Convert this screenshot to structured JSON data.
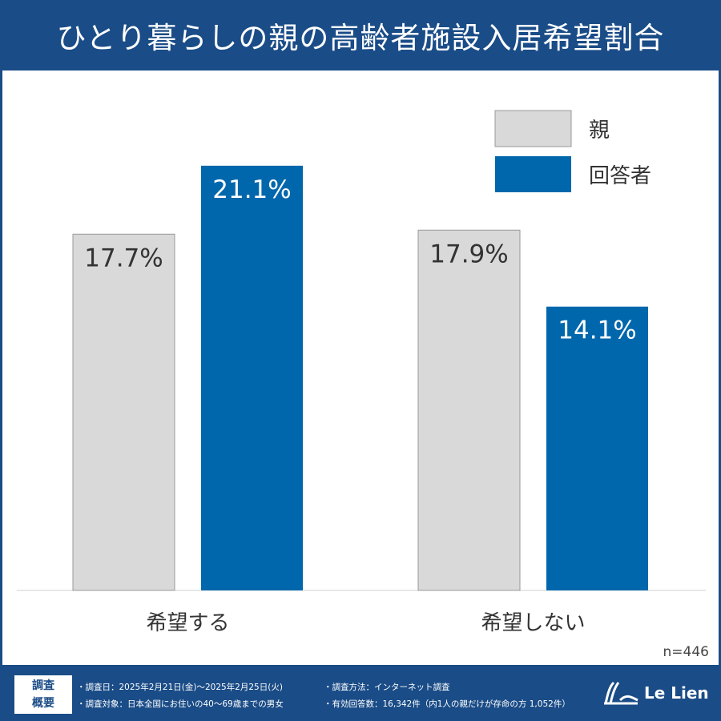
{
  "title": "ひとり暮らしの親の高齢者施設入居希望割合",
  "colors": {
    "header": "#1a4c87",
    "parent": "#d9d9d9",
    "respondent": "#0067ac"
  },
  "chart_data": {
    "type": "bar",
    "title": "ひとり暮らしの親の高齢者施設入居希望割合",
    "categories": [
      "希望する",
      "希望しない"
    ],
    "series": [
      {
        "name": "親",
        "values": [
          17.7,
          17.9
        ],
        "labels": [
          "17.7%",
          "17.9%"
        ],
        "color": "#d9d9d9"
      },
      {
        "name": "回答者",
        "values": [
          21.1,
          14.1
        ],
        "labels": [
          "21.1%",
          "14.1%"
        ],
        "color": "#0067ac"
      }
    ],
    "ylim": [
      0,
      24
    ],
    "grid": false,
    "legend": "top-right",
    "annotation": "n=446"
  },
  "footer": {
    "box_line1": "調査",
    "box_line2": "概要",
    "items": [
      "・調査日：2025年2月21日(金)～2025年2月25日(火)",
      "・調査方法：インターネット調査",
      "・調査対象：日本全国にお住いの40～69歳までの男女",
      "・有効回答数：16,342件（内1人の親だけが存命の方 1,052件）"
    ],
    "logo": "Le Lien"
  }
}
